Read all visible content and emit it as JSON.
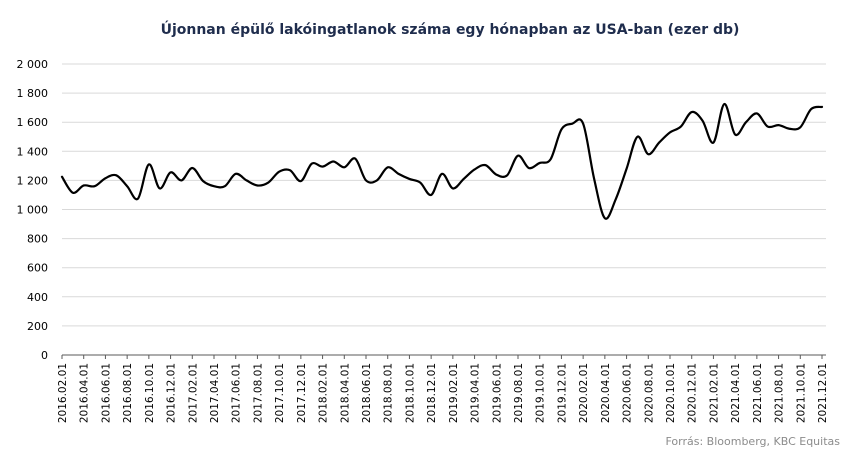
{
  "chart_data": {
    "type": "line",
    "title": "Újonnan épülő lakóingatlanok száma egy hónapban az USA-ban (ezer db)",
    "xlabel": "",
    "ylabel": "",
    "ylim": [
      0,
      2000
    ],
    "yticks": [
      "0",
      "200",
      "400",
      "600",
      "800",
      "1 000",
      "1 200",
      "1 400",
      "1 600",
      "1 800",
      "2 000"
    ],
    "grid": true,
    "legend": "none",
    "line_color": "#000000",
    "x_tick_labels": [
      "2016.02.01",
      "2016.04.01",
      "2016.06.01",
      "2016.08.01",
      "2016.10.01",
      "2016.12.01",
      "2017.02.01",
      "2017.04.01",
      "2017.06.01",
      "2017.08.01",
      "2017.10.01",
      "2017.12.01",
      "2018.02.01",
      "2018.04.01",
      "2018.06.01",
      "2018.08.01",
      "2018.10.01",
      "2018.12.01",
      "2019.02.01",
      "2019.04.01",
      "2019.06.01",
      "2019.08.01",
      "2019.10.01",
      "2019.12.01",
      "2020.02.01",
      "2020.04.01",
      "2020.06.01",
      "2020.08.01",
      "2020.10.01",
      "2020.12.01",
      "2021.02.01",
      "2021.04.01",
      "2021.06.01",
      "2021.08.01",
      "2021.10.01",
      "2021.12.01"
    ],
    "x": [
      "2016.02.01",
      "2016.03.01",
      "2016.04.01",
      "2016.05.01",
      "2016.06.01",
      "2016.07.01",
      "2016.08.01",
      "2016.09.01",
      "2016.10.01",
      "2016.11.01",
      "2016.12.01",
      "2017.01.01",
      "2017.02.01",
      "2017.03.01",
      "2017.04.01",
      "2017.05.01",
      "2017.06.01",
      "2017.07.01",
      "2017.08.01",
      "2017.09.01",
      "2017.10.01",
      "2017.11.01",
      "2017.12.01",
      "2018.01.01",
      "2018.02.01",
      "2018.03.01",
      "2018.04.01",
      "2018.05.01",
      "2018.06.01",
      "2018.07.01",
      "2018.08.01",
      "2018.09.01",
      "2018.10.01",
      "2018.11.01",
      "2018.12.01",
      "2019.01.01",
      "2019.02.01",
      "2019.03.01",
      "2019.04.01",
      "2019.05.01",
      "2019.06.01",
      "2019.07.01",
      "2019.08.01",
      "2019.09.01",
      "2019.10.01",
      "2019.11.01",
      "2019.12.01",
      "2020.01.01",
      "2020.02.01",
      "2020.03.01",
      "2020.04.01",
      "2020.05.01",
      "2020.06.01",
      "2020.07.01",
      "2020.08.01",
      "2020.09.01",
      "2020.10.01",
      "2020.11.01",
      "2020.12.01",
      "2021.01.01",
      "2021.02.01",
      "2021.03.01",
      "2021.04.01",
      "2021.05.01",
      "2021.06.01",
      "2021.07.01",
      "2021.08.01",
      "2021.09.01",
      "2021.10.01",
      "2021.11.01",
      "2021.12.01"
    ],
    "series": [
      {
        "values": [
          1225,
          1115,
          1165,
          1160,
          1215,
          1235,
          1160,
          1075,
          1310,
          1145,
          1255,
          1200,
          1285,
          1195,
          1160,
          1160,
          1245,
          1200,
          1165,
          1185,
          1260,
          1270,
          1195,
          1315,
          1295,
          1330,
          1290,
          1350,
          1200,
          1200,
          1290,
          1245,
          1210,
          1185,
          1100,
          1245,
          1145,
          1210,
          1275,
          1305,
          1240,
          1235,
          1370,
          1285,
          1320,
          1345,
          1550,
          1590,
          1590,
          1215,
          940,
          1070,
          1280,
          1500,
          1380,
          1460,
          1530,
          1570,
          1670,
          1610,
          1460,
          1725,
          1515,
          1600,
          1660,
          1570,
          1580,
          1555,
          1565,
          1690,
          1705
        ]
      }
    ]
  },
  "source": "Forrás: Bloomberg,  KBC Equitas"
}
